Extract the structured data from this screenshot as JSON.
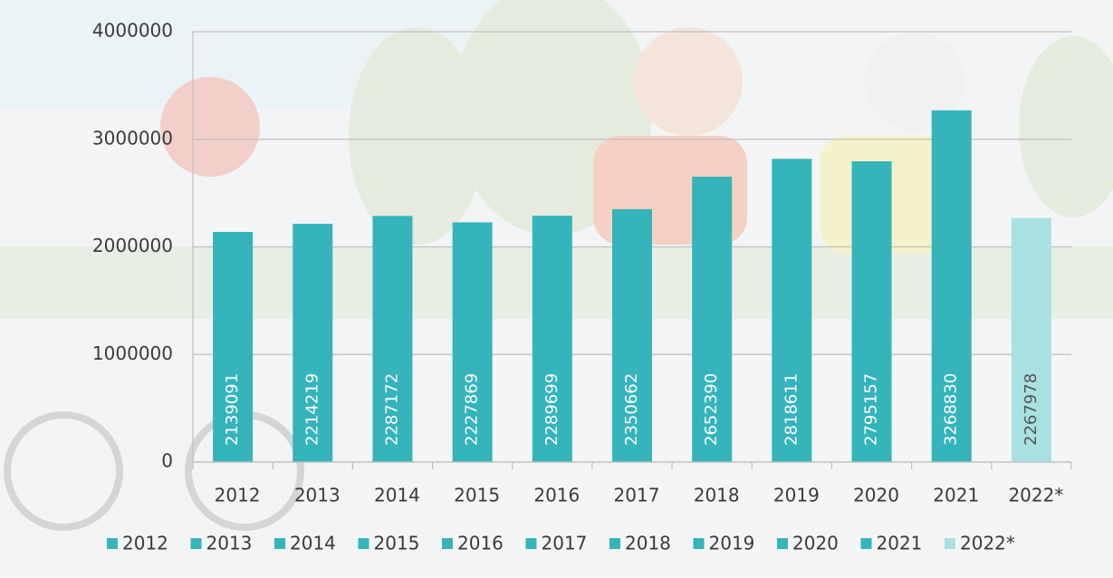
{
  "chart_data": {
    "type": "bar",
    "categories": [
      "2012",
      "2013",
      "2014",
      "2015",
      "2016",
      "2017",
      "2018",
      "2019",
      "2020",
      "2021",
      "2022*"
    ],
    "values": [
      2139091,
      2214219,
      2287172,
      2227869,
      2289699,
      2350662,
      2652390,
      2818611,
      2795157,
      3268830,
      2267978
    ],
    "colors": [
      "#35b5bb",
      "#35b5bb",
      "#35b5bb",
      "#35b5bb",
      "#35b5bb",
      "#35b5bb",
      "#35b5bb",
      "#35b5bb",
      "#35b5bb",
      "#35b5bb",
      "#a9e1e3"
    ],
    "ylim": [
      0,
      4000000
    ],
    "yticks": [
      0,
      1000000,
      2000000,
      3000000,
      4000000
    ],
    "grid": true
  }
}
